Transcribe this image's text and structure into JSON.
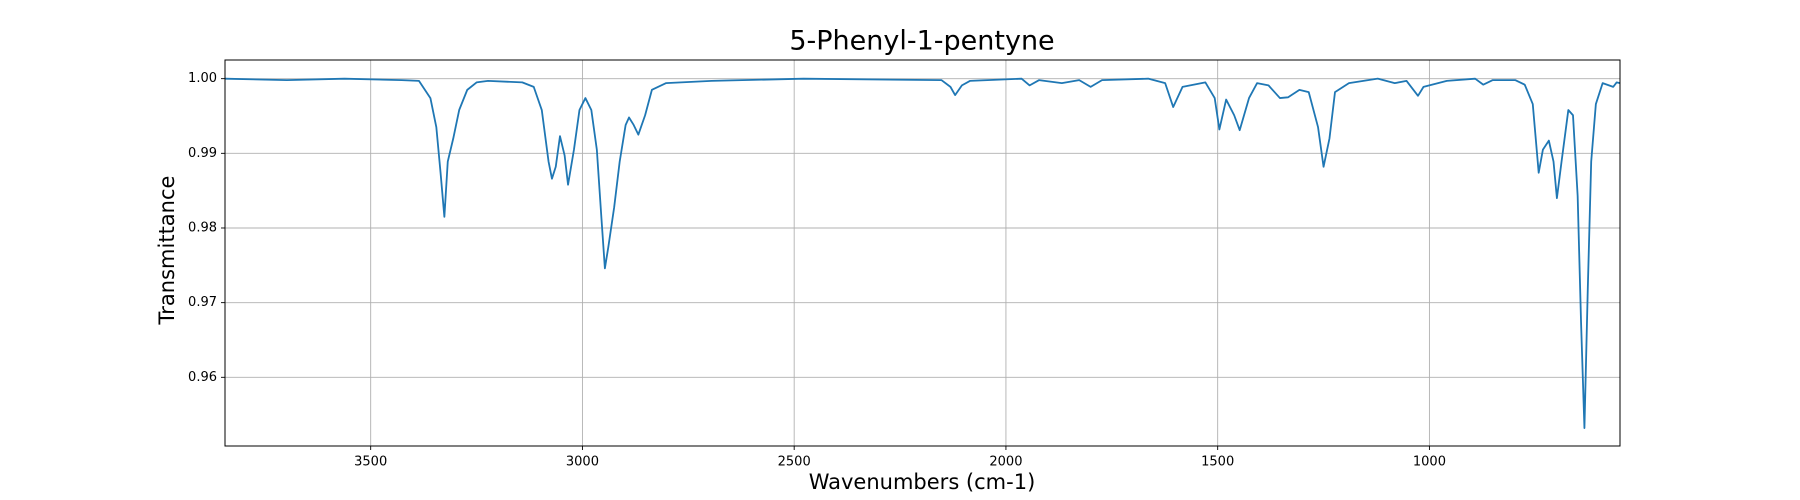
{
  "chart_data": {
    "type": "line",
    "title": "5-Phenyl-1-pentyne",
    "xlabel": "Wavenumbers (cm-1)",
    "ylabel": "Transmittance",
    "x": [
      3844,
      3698,
      3562,
      3427,
      3386,
      3359,
      3345,
      3335,
      3326,
      3318,
      3305,
      3291,
      3272,
      3250,
      3223,
      3142,
      3115,
      3096,
      3080,
      3072,
      3063,
      3053,
      3042,
      3034,
      3020,
      3007,
      2993,
      2979,
      2966,
      2955,
      2947,
      2939,
      2925,
      2912,
      2898,
      2890,
      2879,
      2868,
      2852,
      2836,
      2803,
      2695,
      2478,
      2152,
      2131,
      2120,
      2104,
      2085,
      1963,
      1944,
      1922,
      1868,
      1827,
      1800,
      1773,
      1664,
      1624,
      1605,
      1583,
      1529,
      1507,
      1496,
      1480,
      1461,
      1448,
      1426,
      1407,
      1380,
      1353,
      1334,
      1307,
      1285,
      1263,
      1250,
      1236,
      1223,
      1190,
      1122,
      1082,
      1054,
      1027,
      1014,
      959,
      892,
      873,
      851,
      797,
      775,
      756,
      742,
      732,
      718,
      707,
      699,
      688,
      672,
      661,
      650,
      642,
      634,
      626,
      618,
      607,
      591,
      566,
      558,
      550
    ],
    "series": [
      {
        "name": "5-Phenyl-1-pentyne",
        "color": "#1f77b4",
        "values": [
          1.0,
          0.9998,
          1.0,
          0.9998,
          0.9997,
          0.9974,
          0.9935,
          0.9874,
          0.9815,
          0.9889,
          0.992,
          0.9958,
          0.9985,
          0.9995,
          0.9997,
          0.9995,
          0.9989,
          0.9958,
          0.9889,
          0.9866,
          0.9882,
          0.9923,
          0.9897,
          0.9858,
          0.9905,
          0.9958,
          0.9974,
          0.9958,
          0.9905,
          0.9812,
          0.9746,
          0.9774,
          0.9828,
          0.9889,
          0.9938,
          0.9948,
          0.9938,
          0.9925,
          0.9951,
          0.9985,
          0.9994,
          0.9997,
          1.0,
          0.9998,
          0.9989,
          0.9978,
          0.9991,
          0.9997,
          1.0,
          0.9991,
          0.9998,
          0.9994,
          0.9998,
          0.9989,
          0.9998,
          1.0,
          0.9994,
          0.9962,
          0.9989,
          0.9995,
          0.9974,
          0.9932,
          0.9972,
          0.9951,
          0.9931,
          0.9974,
          0.9994,
          0.9991,
          0.9974,
          0.9975,
          0.9985,
          0.9982,
          0.9935,
          0.9882,
          0.992,
          0.9982,
          0.9994,
          1.0,
          0.9994,
          0.9997,
          0.9977,
          0.9989,
          0.9997,
          1.0,
          0.9992,
          0.9998,
          0.9998,
          0.9992,
          0.9966,
          0.9874,
          0.9905,
          0.9917,
          0.9889,
          0.984,
          0.9889,
          0.9958,
          0.9951,
          0.9843,
          0.9674,
          0.9532,
          0.972,
          0.9889,
          0.9966,
          0.9994,
          0.9989,
          0.9995,
          0.9994
        ]
      }
    ],
    "xlim": [
      3844,
      550
    ],
    "ylim": [
      0.9508,
      1.0025
    ],
    "xticks": [
      3500,
      3000,
      2500,
      2000,
      1500,
      1000
    ],
    "yticks": [
      0.96,
      0.97,
      0.98,
      0.99,
      {
        "value": 1.0,
        "label": "1.00"
      }
    ],
    "grid": true
  }
}
